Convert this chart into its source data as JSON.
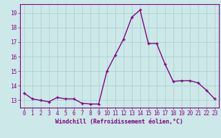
{
  "x": [
    0,
    1,
    2,
    3,
    4,
    5,
    6,
    7,
    8,
    9,
    10,
    11,
    12,
    13,
    14,
    15,
    16,
    17,
    18,
    19,
    20,
    21,
    22,
    23
  ],
  "y": [
    13.5,
    13.1,
    13.0,
    12.9,
    13.2,
    13.1,
    13.1,
    12.8,
    12.75,
    12.75,
    15.0,
    16.1,
    17.2,
    18.7,
    19.2,
    16.9,
    16.9,
    15.5,
    14.3,
    14.35,
    14.35,
    14.2,
    13.7,
    13.1
  ],
  "line_color": "#800080",
  "marker": "+",
  "marker_size": 3,
  "bg_color": "#cce8e8",
  "grid_color": "#aacccc",
  "xlabel": "Windchill (Refroidissement éolien,°C)",
  "xlim_min": -0.5,
  "xlim_max": 23.5,
  "ylim_min": 12.5,
  "ylim_max": 19.6,
  "xticks": [
    0,
    1,
    2,
    3,
    4,
    5,
    6,
    7,
    8,
    9,
    10,
    11,
    12,
    13,
    14,
    15,
    16,
    17,
    18,
    19,
    20,
    21,
    22,
    23
  ],
  "yticks": [
    13,
    14,
    15,
    16,
    17,
    18,
    19
  ],
  "tick_color": "#800080",
  "label_color": "#800080",
  "font_size_ticks": 5.5,
  "font_size_xlabel": 6.0,
  "line_width": 1.0,
  "marker_edge_width": 1.0
}
